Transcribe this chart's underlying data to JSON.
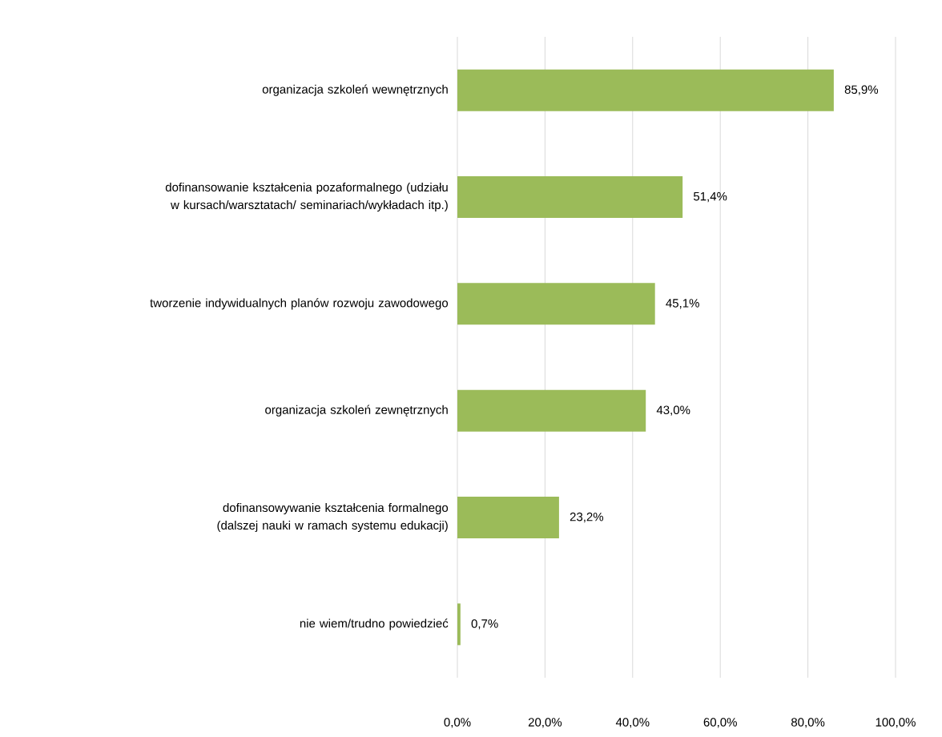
{
  "chart_data": {
    "type": "bar",
    "orientation": "horizontal",
    "categories": [
      "organizacja szkoleń wewnętrznych",
      "dofinansowanie kształcenia pozaformalnego (udziału w kursach/warsztatach/ seminariach/wykładach itp.)",
      "tworzenie indywidualnych planów rozwoju zawodowego",
      "organizacja szkoleń zewnętrznych",
      "dofinansowywanie kształcenia formalnego (dalszej nauki w ramach systemu edukacji)",
      "nie wiem/trudno powiedzieć"
    ],
    "values": [
      85.9,
      51.4,
      45.1,
      43.0,
      23.2,
      0.7
    ],
    "value_labels": [
      "85,9%",
      "51,4%",
      "45,1%",
      "43,0%",
      "23,2%",
      "0,7%"
    ],
    "color": "#9bbb59",
    "xlim": [
      0,
      100
    ],
    "xticks": [
      {
        "value": 0,
        "label": "0,0%"
      },
      {
        "value": 20,
        "label": "20,0%"
      },
      {
        "value": 40,
        "label": "40,0%"
      },
      {
        "value": 60,
        "label": "60,0%"
      },
      {
        "value": 80,
        "label": "80,0%"
      },
      {
        "value": 100,
        "label": "100,0%"
      }
    ],
    "grid": "x"
  }
}
